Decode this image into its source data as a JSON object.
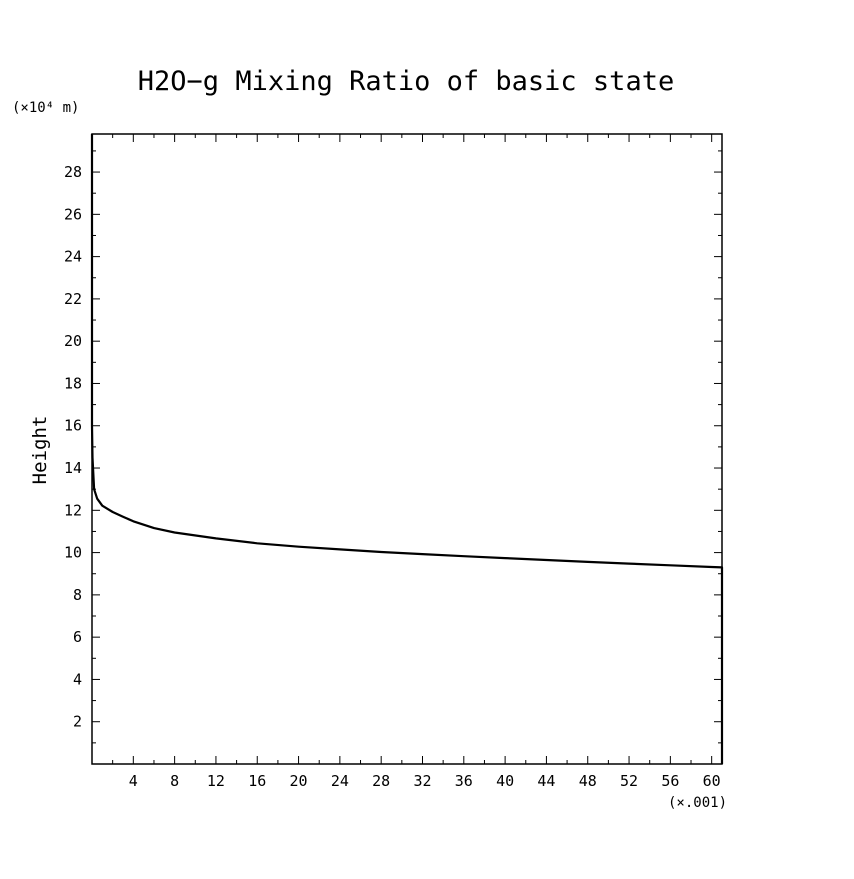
{
  "chart_data": {
    "type": "line",
    "title": "H2O−g Mixing Ratio of basic state",
    "ylabel": "Height",
    "xlabel": "",
    "y_unit_label": "(×10⁴ m)",
    "x_unit_label": "(×.001)",
    "xlim": [
      0,
      61
    ],
    "ylim": [
      0,
      29.8
    ],
    "x_ticks": [
      4,
      8,
      12,
      16,
      20,
      24,
      28,
      32,
      36,
      40,
      44,
      48,
      52,
      56,
      60
    ],
    "y_ticks": [
      2,
      4,
      6,
      8,
      10,
      12,
      14,
      16,
      18,
      20,
      22,
      24,
      26,
      28
    ],
    "x_minor_step": 2,
    "y_minor_step": 1,
    "grid": false,
    "series": [
      {
        "color": "#000000",
        "x": [
          61.0,
          61.0,
          60.0,
          56.0,
          52.0,
          48.0,
          44.0,
          40.0,
          36.0,
          32.0,
          28.0,
          24.0,
          20.0,
          16.0,
          12.0,
          8.0,
          6.0,
          4.0,
          3.0,
          2.0,
          1.0,
          0.5,
          0.2,
          0.05,
          0.0,
          0.0
        ],
        "y": [
          0.0,
          9.3,
          9.32,
          9.4,
          9.48,
          9.56,
          9.65,
          9.74,
          9.83,
          9.93,
          10.03,
          10.15,
          10.28,
          10.44,
          10.67,
          10.95,
          11.16,
          11.48,
          11.7,
          11.92,
          12.22,
          12.55,
          13.0,
          14.5,
          16.0,
          29.8
        ]
      }
    ]
  }
}
